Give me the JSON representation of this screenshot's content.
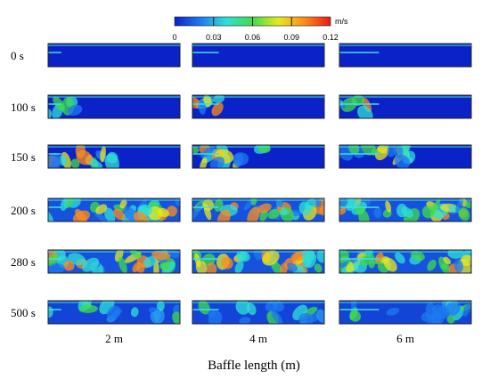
{
  "colorbar": {
    "unit": "m/s",
    "ticks": [
      "0",
      "0.03",
      "0.06",
      "0.09",
      "0.12"
    ],
    "min": 0,
    "max": 0.12,
    "colors": [
      "#0a22c8",
      "#1f7af0",
      "#2fe0d6",
      "#3fdc4a",
      "#e8e81c",
      "#ff8c1a",
      "#e31818"
    ]
  },
  "time_labels": [
    "0 s",
    "100 s",
    "150 s",
    "200 s",
    "280 s",
    "500 s"
  ],
  "column_labels": [
    "2 m",
    "4 m",
    "6 m"
  ],
  "x_axis_title": "Baffle length (m)"
}
